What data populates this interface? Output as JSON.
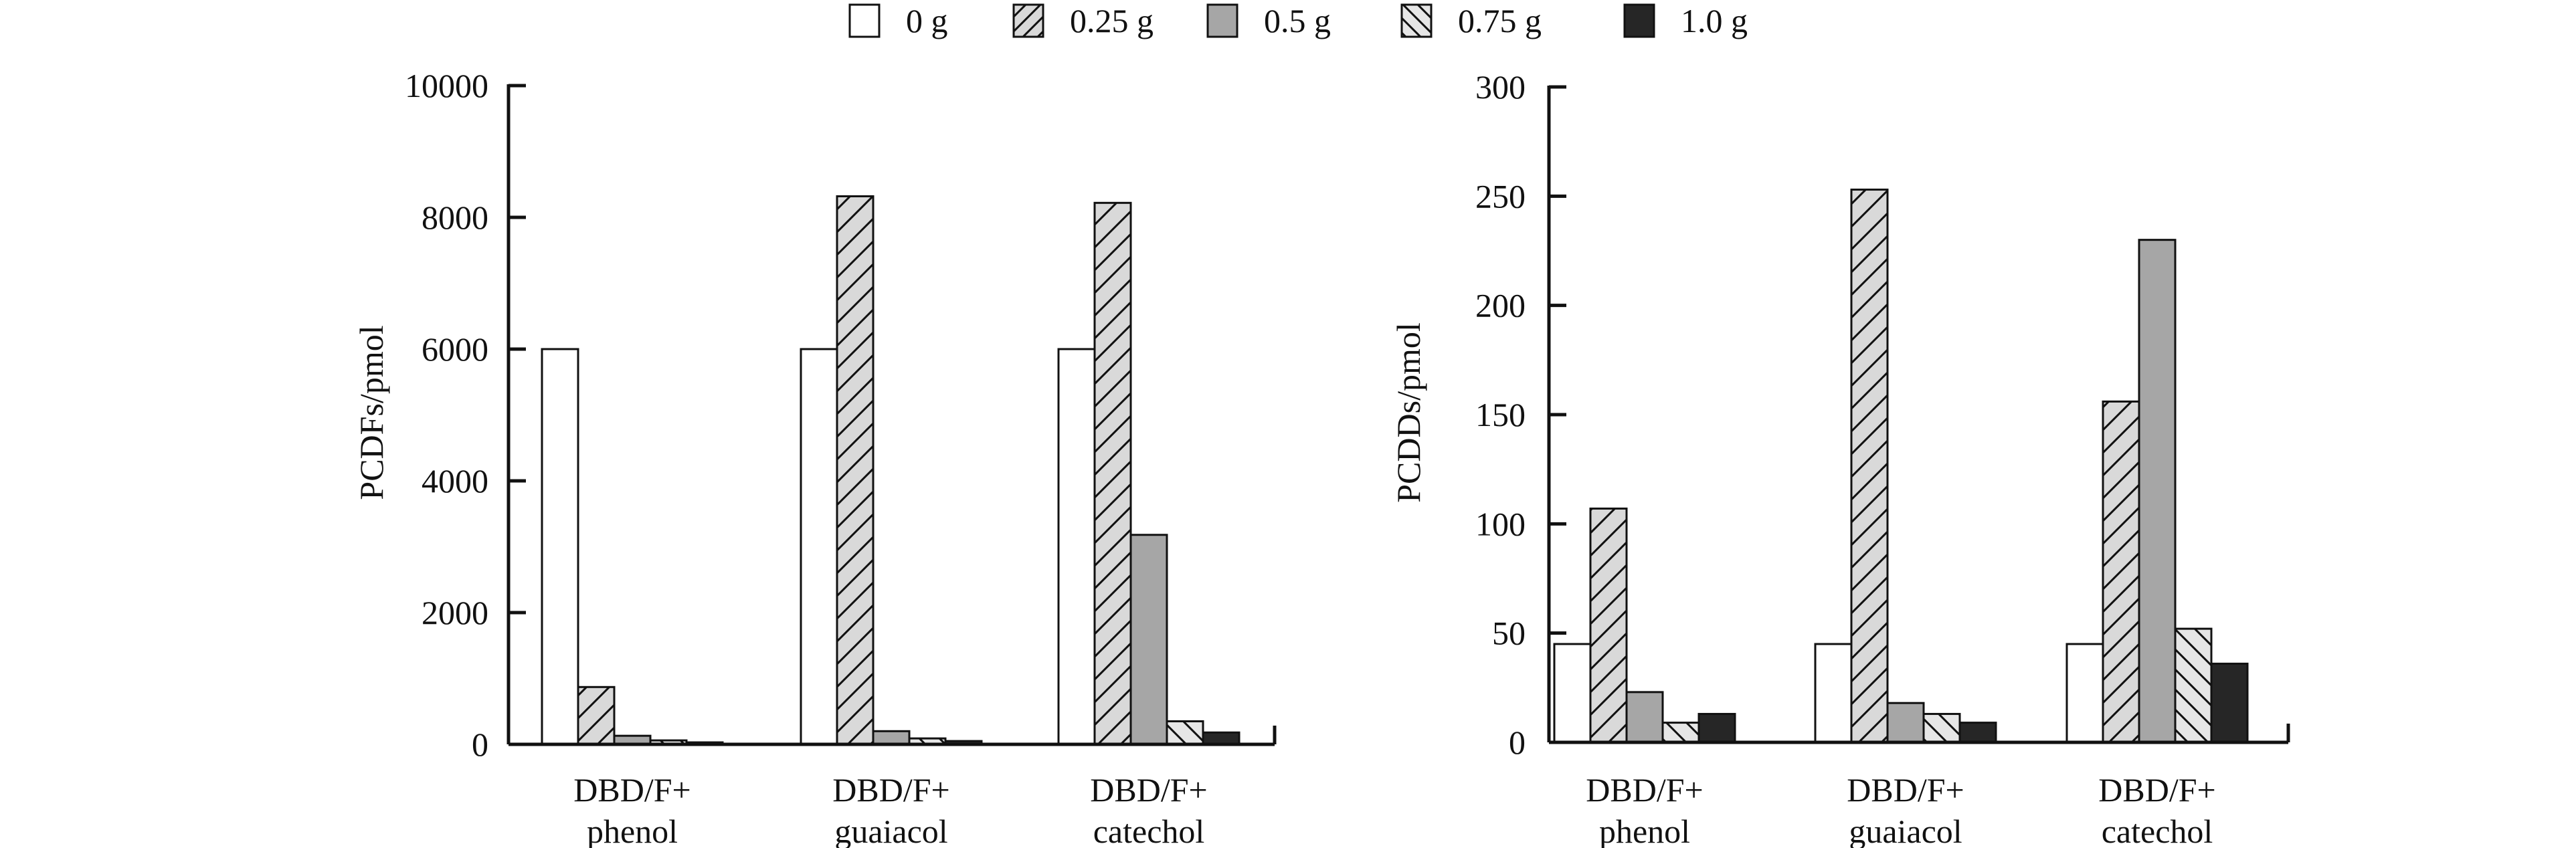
{
  "legend": {
    "items": [
      {
        "label": "0 g",
        "fill": "#ffffff",
        "pattern": "none"
      },
      {
        "label": "0.25 g",
        "fill": "#d9d9d9",
        "pattern": "hatch-forward"
      },
      {
        "label": "0.5 g",
        "fill": "#a6a6a6",
        "pattern": "none"
      },
      {
        "label": "0.75 g",
        "fill": "#e6e6e6",
        "pattern": "hatch-back"
      },
      {
        "label": "1.0 g",
        "fill": "#262626",
        "pattern": "none"
      }
    ]
  },
  "chart_data": [
    {
      "type": "bar",
      "ylabel": "PCDFs/pmol",
      "xlabel": "",
      "ylim": [
        0,
        10000
      ],
      "yticks": [
        0,
        2000,
        4000,
        6000,
        8000,
        10000
      ],
      "categories": [
        [
          "DBD/F+",
          "phenol"
        ],
        [
          "DBD/F+",
          "guaiacol"
        ],
        [
          "DBD/F+",
          "catechol"
        ]
      ],
      "series": [
        {
          "name": "0 g",
          "values": [
            6000,
            6000,
            6000
          ]
        },
        {
          "name": "0.25 g",
          "values": [
            870,
            8320,
            8220
          ]
        },
        {
          "name": "0.5 g",
          "values": [
            130,
            200,
            3180
          ]
        },
        {
          "name": "0.75 g",
          "values": [
            60,
            90,
            350
          ]
        },
        {
          "name": "1.0 g",
          "values": [
            30,
            50,
            180
          ]
        }
      ]
    },
    {
      "type": "bar",
      "ylabel": "PCDDs/pmol",
      "xlabel": "",
      "ylim": [
        0,
        300
      ],
      "yticks": [
        0,
        50,
        100,
        150,
        200,
        250,
        300
      ],
      "categories": [
        [
          "DBD/F+",
          "phenol"
        ],
        [
          "DBD/F+",
          "guaiacol"
        ],
        [
          "DBD/F+",
          "catechol"
        ]
      ],
      "series": [
        {
          "name": "0 g",
          "values": [
            45,
            45,
            45
          ]
        },
        {
          "name": "0.25 g",
          "values": [
            107,
            253,
            156
          ]
        },
        {
          "name": "0.5 g",
          "values": [
            23,
            18,
            230
          ]
        },
        {
          "name": "0.75 g",
          "values": [
            9,
            13,
            52
          ]
        },
        {
          "name": "1.0 g",
          "values": [
            13,
            9,
            36
          ]
        }
      ]
    }
  ]
}
